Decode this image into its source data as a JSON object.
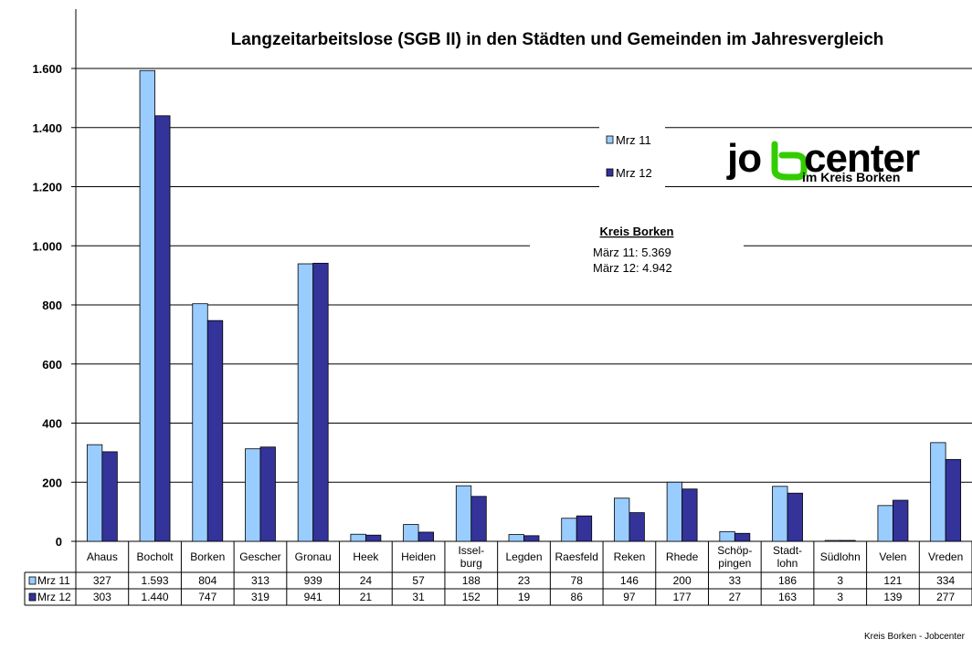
{
  "chart_data": {
    "type": "bar",
    "title": "Langzeitarbeitslose (SGB II) in den Städten und Gemeinden im Jahresvergleich",
    "categories": [
      [
        "Ahaus"
      ],
      [
        "Bocholt"
      ],
      [
        "Borken"
      ],
      [
        "Gescher"
      ],
      [
        "Gronau"
      ],
      [
        "Heek"
      ],
      [
        "Heiden"
      ],
      [
        "Issel-",
        "burg"
      ],
      [
        "Legden"
      ],
      [
        "Raesfeld"
      ],
      [
        "Reken"
      ],
      [
        "Rhede"
      ],
      [
        "Schöp-",
        "pingen"
      ],
      [
        "Stadt-",
        "lohn"
      ],
      [
        "Südlohn"
      ],
      [
        "Velen"
      ],
      [
        "Vreden"
      ]
    ],
    "series": [
      {
        "name": "Mrz 11",
        "color": "#99CCFF",
        "values": [
          327,
          1593,
          804,
          313,
          939,
          24,
          57,
          188,
          23,
          78,
          146,
          200,
          33,
          186,
          3,
          121,
          334
        ],
        "labels": [
          "327",
          "1.593",
          "804",
          "313",
          "939",
          "24",
          "57",
          "188",
          "23",
          "78",
          "146",
          "200",
          "33",
          "186",
          "3",
          "121",
          "334"
        ]
      },
      {
        "name": "Mrz 12",
        "color": "#333399",
        "values": [
          303,
          1440,
          747,
          319,
          941,
          21,
          31,
          152,
          19,
          86,
          97,
          177,
          27,
          163,
          3,
          139,
          277
        ],
        "labels": [
          "303",
          "1.440",
          "747",
          "319",
          "941",
          "21",
          "31",
          "152",
          "19",
          "86",
          "97",
          "177",
          "27",
          "163",
          "3",
          "139",
          "277"
        ]
      }
    ],
    "ylim": [
      0,
      1600
    ],
    "yticks": [
      0,
      200,
      400,
      600,
      800,
      1000,
      1200,
      1400,
      1600
    ],
    "ytick_labels": [
      "0",
      "200",
      "400",
      "600",
      "800",
      "1.000",
      "1.200",
      "1.400",
      "1.600"
    ],
    "grid": true,
    "legend_position": "top-right",
    "data_table": true
  },
  "annotation": {
    "heading": "Kreis Borken",
    "lines": [
      "März 11: 5.369",
      "März 12: 4.942"
    ]
  },
  "logo": {
    "word": "jobcenter",
    "subtitle": "im Kreis Borken",
    "colors": {
      "text": "#000000",
      "accent": "#33CC00"
    }
  },
  "footer": "Kreis Borken - Jobcenter"
}
